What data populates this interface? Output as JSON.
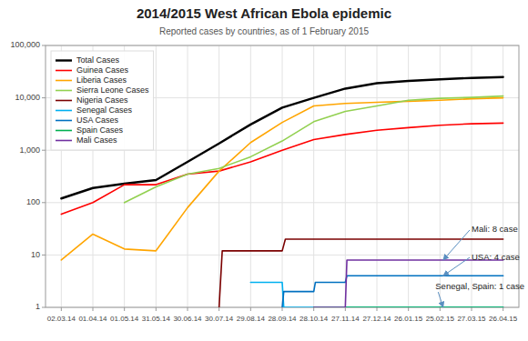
{
  "chart_data": {
    "type": "line",
    "title": "2014/2015 West African Ebola epidemic",
    "subtitle": "Reported cases by countries, as of 1 February 2015",
    "log": "y",
    "grid": true,
    "legend": "upper left",
    "xlim": [
      -0.5,
      14.5
    ],
    "xticks": [
      {
        "value": 0,
        "label": "02.03.14"
      },
      {
        "value": 1,
        "label": "01.04.14"
      },
      {
        "value": 2,
        "label": "01.05.14"
      },
      {
        "value": 3,
        "label": "31.05.14"
      },
      {
        "value": 4,
        "label": "30.06.14"
      },
      {
        "value": 5,
        "label": "30.07.14"
      },
      {
        "value": 6,
        "label": "29.08.14"
      },
      {
        "value": 7,
        "label": "28.09.14"
      },
      {
        "value": 8,
        "label": "28.10.14"
      },
      {
        "value": 9,
        "label": "27.11.14"
      },
      {
        "value": 10,
        "label": "27.12.14"
      },
      {
        "value": 11,
        "label": "26.01.15"
      },
      {
        "value": 12,
        "label": "25.02.15"
      },
      {
        "value": 13,
        "label": "27.03.15"
      },
      {
        "value": 14,
        "label": "26.04.15"
      }
    ],
    "ylim": [
      1,
      100000
    ],
    "yticks": [
      1,
      10,
      100,
      {
        "value": 1000,
        "label": "1,000"
      },
      {
        "value": 10000,
        "label": "10,000"
      },
      {
        "value": 100000,
        "label": "100,000"
      }
    ],
    "series": [
      {
        "name": "Total Cases",
        "color": "#000000",
        "x": [
          0,
          1,
          2,
          3,
          4,
          5,
          6,
          7,
          8,
          9,
          10,
          11,
          12,
          13,
          14
        ],
        "values": [
          120,
          190,
          230,
          270,
          600,
          1350,
          3100,
          6500,
          10000,
          15000,
          19000,
          21000,
          22500,
          24000,
          25000
        ]
      },
      {
        "name": "Guinea Cases",
        "color": "#ff0000",
        "x": [
          0,
          1,
          2,
          3,
          4,
          5,
          6,
          7,
          8,
          9,
          10,
          11,
          12,
          13,
          14
        ],
        "values": [
          60,
          100,
          220,
          220,
          350,
          400,
          600,
          1000,
          1600,
          2000,
          2400,
          2700,
          3000,
          3200,
          3300
        ]
      },
      {
        "name": "Liberia Cases",
        "color": "#ffa500",
        "x": [
          0,
          1,
          2,
          3,
          4,
          5,
          6,
          7,
          8,
          9,
          10,
          11,
          12,
          13,
          14
        ],
        "values": [
          8,
          25,
          13,
          12,
          80,
          400,
          1400,
          3400,
          7000,
          7800,
          8200,
          8600,
          9000,
          9600,
          10000
        ]
      },
      {
        "name": "Sierra Leone Cases",
        "color": "#92d050",
        "x": [
          2,
          3,
          4,
          5,
          6,
          7,
          8,
          9,
          10,
          11,
          12,
          13,
          14
        ],
        "values": [
          100,
          200,
          350,
          450,
          750,
          1500,
          3500,
          5500,
          7000,
          9000,
          9800,
          10200,
          10800
        ]
      },
      {
        "name": "Nigeria Cases",
        "color": "#7b0000",
        "x": [
          5,
          5.1,
          6,
          7,
          7.1,
          8,
          9,
          10,
          11,
          12,
          13,
          14
        ],
        "values": [
          1,
          12,
          12,
          12,
          20,
          20,
          20,
          20,
          20,
          20,
          20,
          20
        ]
      },
      {
        "name": "Senegal Cases",
        "color": "#00b0f0",
        "x": [
          6,
          6.05,
          7,
          7.05,
          8,
          9,
          10,
          11,
          12,
          13,
          14
        ],
        "values": [
          3,
          3,
          3,
          1,
          1,
          1,
          1,
          1,
          1,
          1,
          1
        ]
      },
      {
        "name": "USA Cases",
        "color": "#0070c0",
        "x": [
          7,
          7.05,
          8,
          8.05,
          9,
          9.05,
          10,
          11,
          12,
          13,
          14
        ],
        "values": [
          1,
          2,
          2,
          3,
          3,
          4,
          4,
          4,
          4,
          4,
          4
        ]
      },
      {
        "name": "Spain Cases",
        "color": "#00b050",
        "x": [
          8,
          9,
          10,
          11,
          12,
          13,
          14
        ],
        "values": [
          1,
          1,
          1,
          1,
          1,
          1,
          1
        ]
      },
      {
        "name": "Mali Cases",
        "color": "#7030a0",
        "x": [
          8,
          8.05,
          9,
          9.05,
          10,
          11,
          12,
          13,
          14
        ],
        "values": [
          1,
          1,
          1,
          8,
          8,
          8,
          8,
          8,
          8
        ]
      }
    ],
    "annotations": [
      {
        "text": "Mali: 8 case",
        "x": 12.1,
        "y": 8,
        "text_x": 13.0,
        "text_y": 30
      },
      {
        "text": "USA: 4 case",
        "x": 12.1,
        "y": 4,
        "text_x": 13.0,
        "text_y": 9
      },
      {
        "text": "Senegal, Spain: 1 case",
        "x": 12.1,
        "y": 1,
        "text_x": 13.0,
        "text_y": 2.5
      }
    ]
  }
}
